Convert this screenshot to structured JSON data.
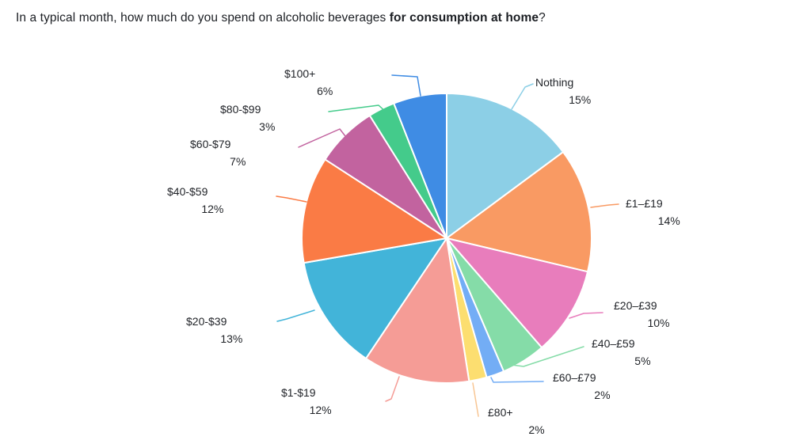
{
  "title": {
    "prefix": "In a typical month, how much do you spend on alcoholic beverages ",
    "bold": "for consumption at home",
    "suffix": "?"
  },
  "chart_data": {
    "type": "pie",
    "title": "In a typical month, how much do you spend on alcoholic beverages for consumption at home?",
    "unit": "%",
    "direction": "clockwise",
    "start_angle_deg": 0,
    "labels_style": "outside-with-leader-lines",
    "slices": [
      {
        "label": "Nothing",
        "value": 15,
        "display": "15%",
        "color": "#8CCFE6"
      },
      {
        "label": "£1–£19",
        "value": 14,
        "display": "14%",
        "color": "#F99A63"
      },
      {
        "label": "£20–£39",
        "value": 10,
        "display": "10%",
        "color": "#E87DBC"
      },
      {
        "label": "£40–£59",
        "value": 5,
        "display": "5%",
        "color": "#85DCA8"
      },
      {
        "label": "£60–£79",
        "value": 2,
        "display": "2%",
        "color": "#73ADF5"
      },
      {
        "label": "£80+",
        "value": 2,
        "display": "2%",
        "color": "#FCDE70"
      },
      {
        "label": "$1-$19",
        "value": 12,
        "display": "12%",
        "color": "#F59C96"
      },
      {
        "label": "$20-$39",
        "value": 13,
        "display": "13%",
        "color": "#42B4D9"
      },
      {
        "label": "$40-$59",
        "value": 12,
        "display": "12%",
        "color": "#FA7B45"
      },
      {
        "label": "$60-$79",
        "value": 7,
        "display": "7%",
        "color": "#C2639F"
      },
      {
        "label": "$80-$99",
        "value": 3,
        "display": "3%",
        "color": "#44CB8B"
      },
      {
        "label": "$100+",
        "value": 6,
        "display": "6%",
        "color": "#3F8CE4"
      }
    ]
  }
}
